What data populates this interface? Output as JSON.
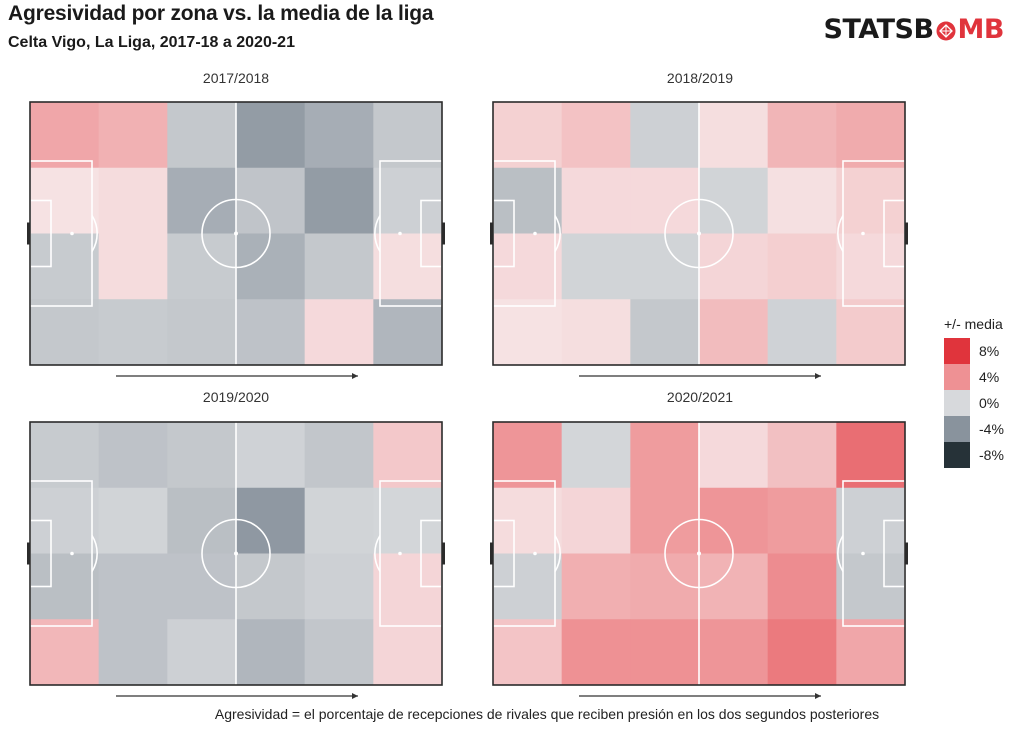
{
  "header": {
    "title": "Agresividad por zona vs. la media de la liga",
    "subtitle": "Celta Vigo, La Liga, 2017-18 a 2020-21"
  },
  "logo": {
    "text_left": "STATSB",
    "text_right": "MB",
    "bomb_color": "#e0343c",
    "text_color": "#1a1a1a"
  },
  "caption": "Agresividad = el porcentaje de recepciones de rivales que reciben presión en los dos segundos posteriores",
  "legend": {
    "title": "+/- media",
    "items": [
      {
        "label": "8%",
        "color": "#e0343c"
      },
      {
        "label": "4%",
        "color": "#ee9194"
      },
      {
        "label": "0%",
        "color": "#d7d9dc"
      },
      {
        "label": "-4%",
        "color": "#89939d"
      },
      {
        "label": "-8%",
        "color": "#263238"
      }
    ]
  },
  "chart_data": [
    {
      "type": "heatmap",
      "title": "2017/2018",
      "grid": "6 columns x 4 rows (attacking direction left to right)",
      "values": [
        [
          3.0,
          2.5,
          -1.0,
          -3.5,
          -2.5,
          -1.0
        ],
        [
          0.2,
          0.5,
          -2.5,
          -1.2,
          -3.5,
          -0.5
        ],
        [
          -0.8,
          0.5,
          -0.8,
          -2.3,
          -1.0,
          0.4
        ],
        [
          -1.0,
          -0.8,
          -1.0,
          -1.3,
          0.6,
          -2.0
        ]
      ]
    },
    {
      "type": "heatmap",
      "title": "2018/2019",
      "grid": "6 columns x 4 rows (attacking direction left to right)",
      "values": [
        [
          1.0,
          1.7,
          -0.5,
          0.4,
          2.3,
          2.8
        ],
        [
          -1.5,
          0.6,
          0.6,
          -0.3,
          0.3,
          1.0
        ],
        [
          0.6,
          -0.3,
          -0.3,
          0.8,
          1.1,
          0.6
        ],
        [
          0.2,
          0.4,
          -1.0,
          2.0,
          -0.4,
          1.3
        ]
      ]
    },
    {
      "type": "heatmap",
      "title": "2019/2020",
      "grid": "6 columns x 4 rows (attacking direction left to right)",
      "values": [
        [
          -0.8,
          -1.3,
          -1.0,
          -0.4,
          -1.1,
          1.4
        ],
        [
          -0.5,
          -0.3,
          -1.5,
          -3.7,
          -0.3,
          -0.2
        ],
        [
          -1.5,
          -1.3,
          -1.3,
          -1.0,
          -0.5,
          0.8
        ],
        [
          2.2,
          -1.3,
          -0.5,
          -2.0,
          -1.1,
          0.8
        ]
      ]
    },
    {
      "type": "heatmap",
      "title": "2020/2021",
      "grid": "6 columns x 4 rows (attacking direction left to right)",
      "values": [
        [
          3.8,
          -0.2,
          3.5,
          0.6,
          1.8,
          5.5
        ],
        [
          0.5,
          0.8,
          3.5,
          3.8,
          3.5,
          -0.5
        ],
        [
          -0.5,
          2.6,
          2.8,
          2.4,
          4.2,
          -1.0
        ],
        [
          1.6,
          4.0,
          4.0,
          3.8,
          5.0,
          3.0
        ]
      ]
    }
  ]
}
